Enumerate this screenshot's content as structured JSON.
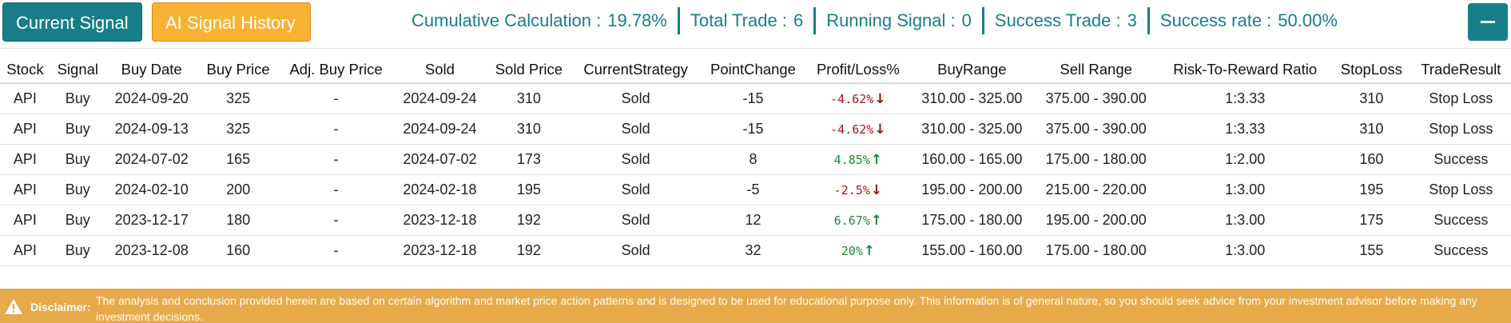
{
  "buttons": {
    "current_signal": "Current Signal",
    "ai_history": "AI Signal History"
  },
  "stats": [
    {
      "label": "Cumulative Calculation :",
      "value": "19.78%"
    },
    {
      "label": "Total Trade :",
      "value": "6"
    },
    {
      "label": "Running Signal :",
      "value": "0"
    },
    {
      "label": "Success Trade :",
      "value": "3"
    },
    {
      "label": "Success rate :",
      "value": "50.00%"
    }
  ],
  "table": {
    "headers": [
      "Stock",
      "Signal",
      "Buy Date",
      "Buy Price",
      "Adj. Buy Price",
      "Sold",
      "Sold Price",
      "CurrentStrategy",
      "PointChange",
      "Profit/Loss%",
      "BuyRange",
      "Sell Range",
      "Risk-To-Reward Ratio",
      "StopLoss",
      "TradeResult"
    ],
    "rows": [
      {
        "stock": "API",
        "signal": "Buy",
        "buy_date": "2024-09-20",
        "buy_price": "325",
        "adj_buy_price": "-",
        "sold": "2024-09-24",
        "sold_price": "310",
        "strategy": "Sold",
        "point_change": "-15",
        "pl": "-4.62%",
        "pl_dir": "down",
        "buy_range": "310.00 - 325.00",
        "sell_range": "375.00 - 390.00",
        "rr": "1:3.33",
        "stop_loss": "310",
        "result": "Stop Loss"
      },
      {
        "stock": "API",
        "signal": "Buy",
        "buy_date": "2024-09-13",
        "buy_price": "325",
        "adj_buy_price": "-",
        "sold": "2024-09-24",
        "sold_price": "310",
        "strategy": "Sold",
        "point_change": "-15",
        "pl": "-4.62%",
        "pl_dir": "down",
        "buy_range": "310.00 - 325.00",
        "sell_range": "375.00 - 390.00",
        "rr": "1:3.33",
        "stop_loss": "310",
        "result": "Stop Loss"
      },
      {
        "stock": "API",
        "signal": "Buy",
        "buy_date": "2024-07-02",
        "buy_price": "165",
        "adj_buy_price": "-",
        "sold": "2024-07-02",
        "sold_price": "173",
        "strategy": "Sold",
        "point_change": "8",
        "pl": "4.85%",
        "pl_dir": "up",
        "buy_range": "160.00 - 165.00",
        "sell_range": "175.00 - 180.00",
        "rr": "1:2.00",
        "stop_loss": "160",
        "result": "Success"
      },
      {
        "stock": "API",
        "signal": "Buy",
        "buy_date": "2024-02-10",
        "buy_price": "200",
        "adj_buy_price": "-",
        "sold": "2024-02-18",
        "sold_price": "195",
        "strategy": "Sold",
        "point_change": "-5",
        "pl": "-2.5%",
        "pl_dir": "down",
        "buy_range": "195.00 - 200.00",
        "sell_range": "215.00 - 220.00",
        "rr": "1:3.00",
        "stop_loss": "195",
        "result": "Stop Loss"
      },
      {
        "stock": "API",
        "signal": "Buy",
        "buy_date": "2023-12-17",
        "buy_price": "180",
        "adj_buy_price": "-",
        "sold": "2023-12-18",
        "sold_price": "192",
        "strategy": "Sold",
        "point_change": "12",
        "pl": "6.67%",
        "pl_dir": "up",
        "buy_range": "175.00 - 180.00",
        "sell_range": "195.00 - 200.00",
        "rr": "1:3.00",
        "stop_loss": "175",
        "result": "Success"
      },
      {
        "stock": "API",
        "signal": "Buy",
        "buy_date": "2023-12-08",
        "buy_price": "160",
        "adj_buy_price": "-",
        "sold": "2023-12-18",
        "sold_price": "192",
        "strategy": "Sold",
        "point_change": "32",
        "pl": "20%",
        "pl_dir": "up",
        "buy_range": "155.00 - 160.00",
        "sell_range": "175.00 - 180.00",
        "rr": "1:3.00",
        "stop_loss": "155",
        "result": "Success"
      }
    ]
  },
  "disclaimer": {
    "label": "Disclaimer:",
    "text": "The analysis and conclusion provided herein are based on certain algorithm and market price action patterns and is designed to be used for educational purpose only. This information is of general nature, so you should seek advice from your investment advisor before making any investment decisions."
  },
  "colors": {
    "teal": "#177e89",
    "orange": "#f8b131",
    "loss": "#a11a1a",
    "profit": "#1a8a3a",
    "disclaimer_bg": "#e7a94a"
  },
  "icons": {
    "collapse": "minus-icon",
    "warning": "warning-triangle-icon",
    "down": "arrow-down-icon",
    "up": "arrow-up-icon"
  }
}
